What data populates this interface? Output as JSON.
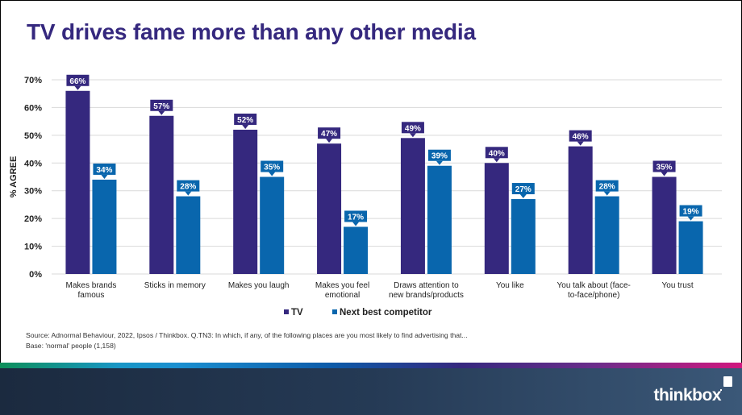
{
  "title": "TV drives fame more than any other media",
  "chart_data": {
    "type": "bar",
    "title": "TV drives fame more than any other media",
    "xlabel": "",
    "ylabel": "% AGREE",
    "ylim": [
      0,
      70
    ],
    "yticks": [
      "0%",
      "10%",
      "20%",
      "30%",
      "40%",
      "50%",
      "60%",
      "70%"
    ],
    "grid": true,
    "legend_position": "bottom",
    "categories": [
      [
        "Makes brands",
        "famous"
      ],
      [
        "Sticks in memory"
      ],
      [
        "Makes you laugh"
      ],
      [
        "Makes you feel",
        "emotional"
      ],
      [
        "Draws attention to",
        "new brands/products"
      ],
      [
        "You like"
      ],
      [
        "You talk about (face-",
        "to-face/phone)"
      ],
      [
        "You trust"
      ]
    ],
    "series": [
      {
        "name": "TV",
        "color": "#35287e",
        "values": [
          66,
          57,
          52,
          47,
          49,
          40,
          46,
          35
        ],
        "labels": [
          "66%",
          "57%",
          "52%",
          "47%",
          "49%",
          "40%",
          "46%",
          "35%"
        ]
      },
      {
        "name": "Next best competitor",
        "color": "#0966ad",
        "values": [
          34,
          28,
          35,
          17,
          39,
          27,
          28,
          19
        ],
        "labels": [
          "34%",
          "28%",
          "35%",
          "17%",
          "39%",
          "27%",
          "28%",
          "19%"
        ]
      }
    ]
  },
  "source": {
    "line1": "Source: Adnormal Behaviour, 2022, Ipsos / Thinkbox. Q.TN3: In which, if any, of the following places are you most likely to find advertising that...",
    "line2": "Base: 'normal' people (1,158)"
  },
  "footer": {
    "logo": "thinkbox"
  }
}
